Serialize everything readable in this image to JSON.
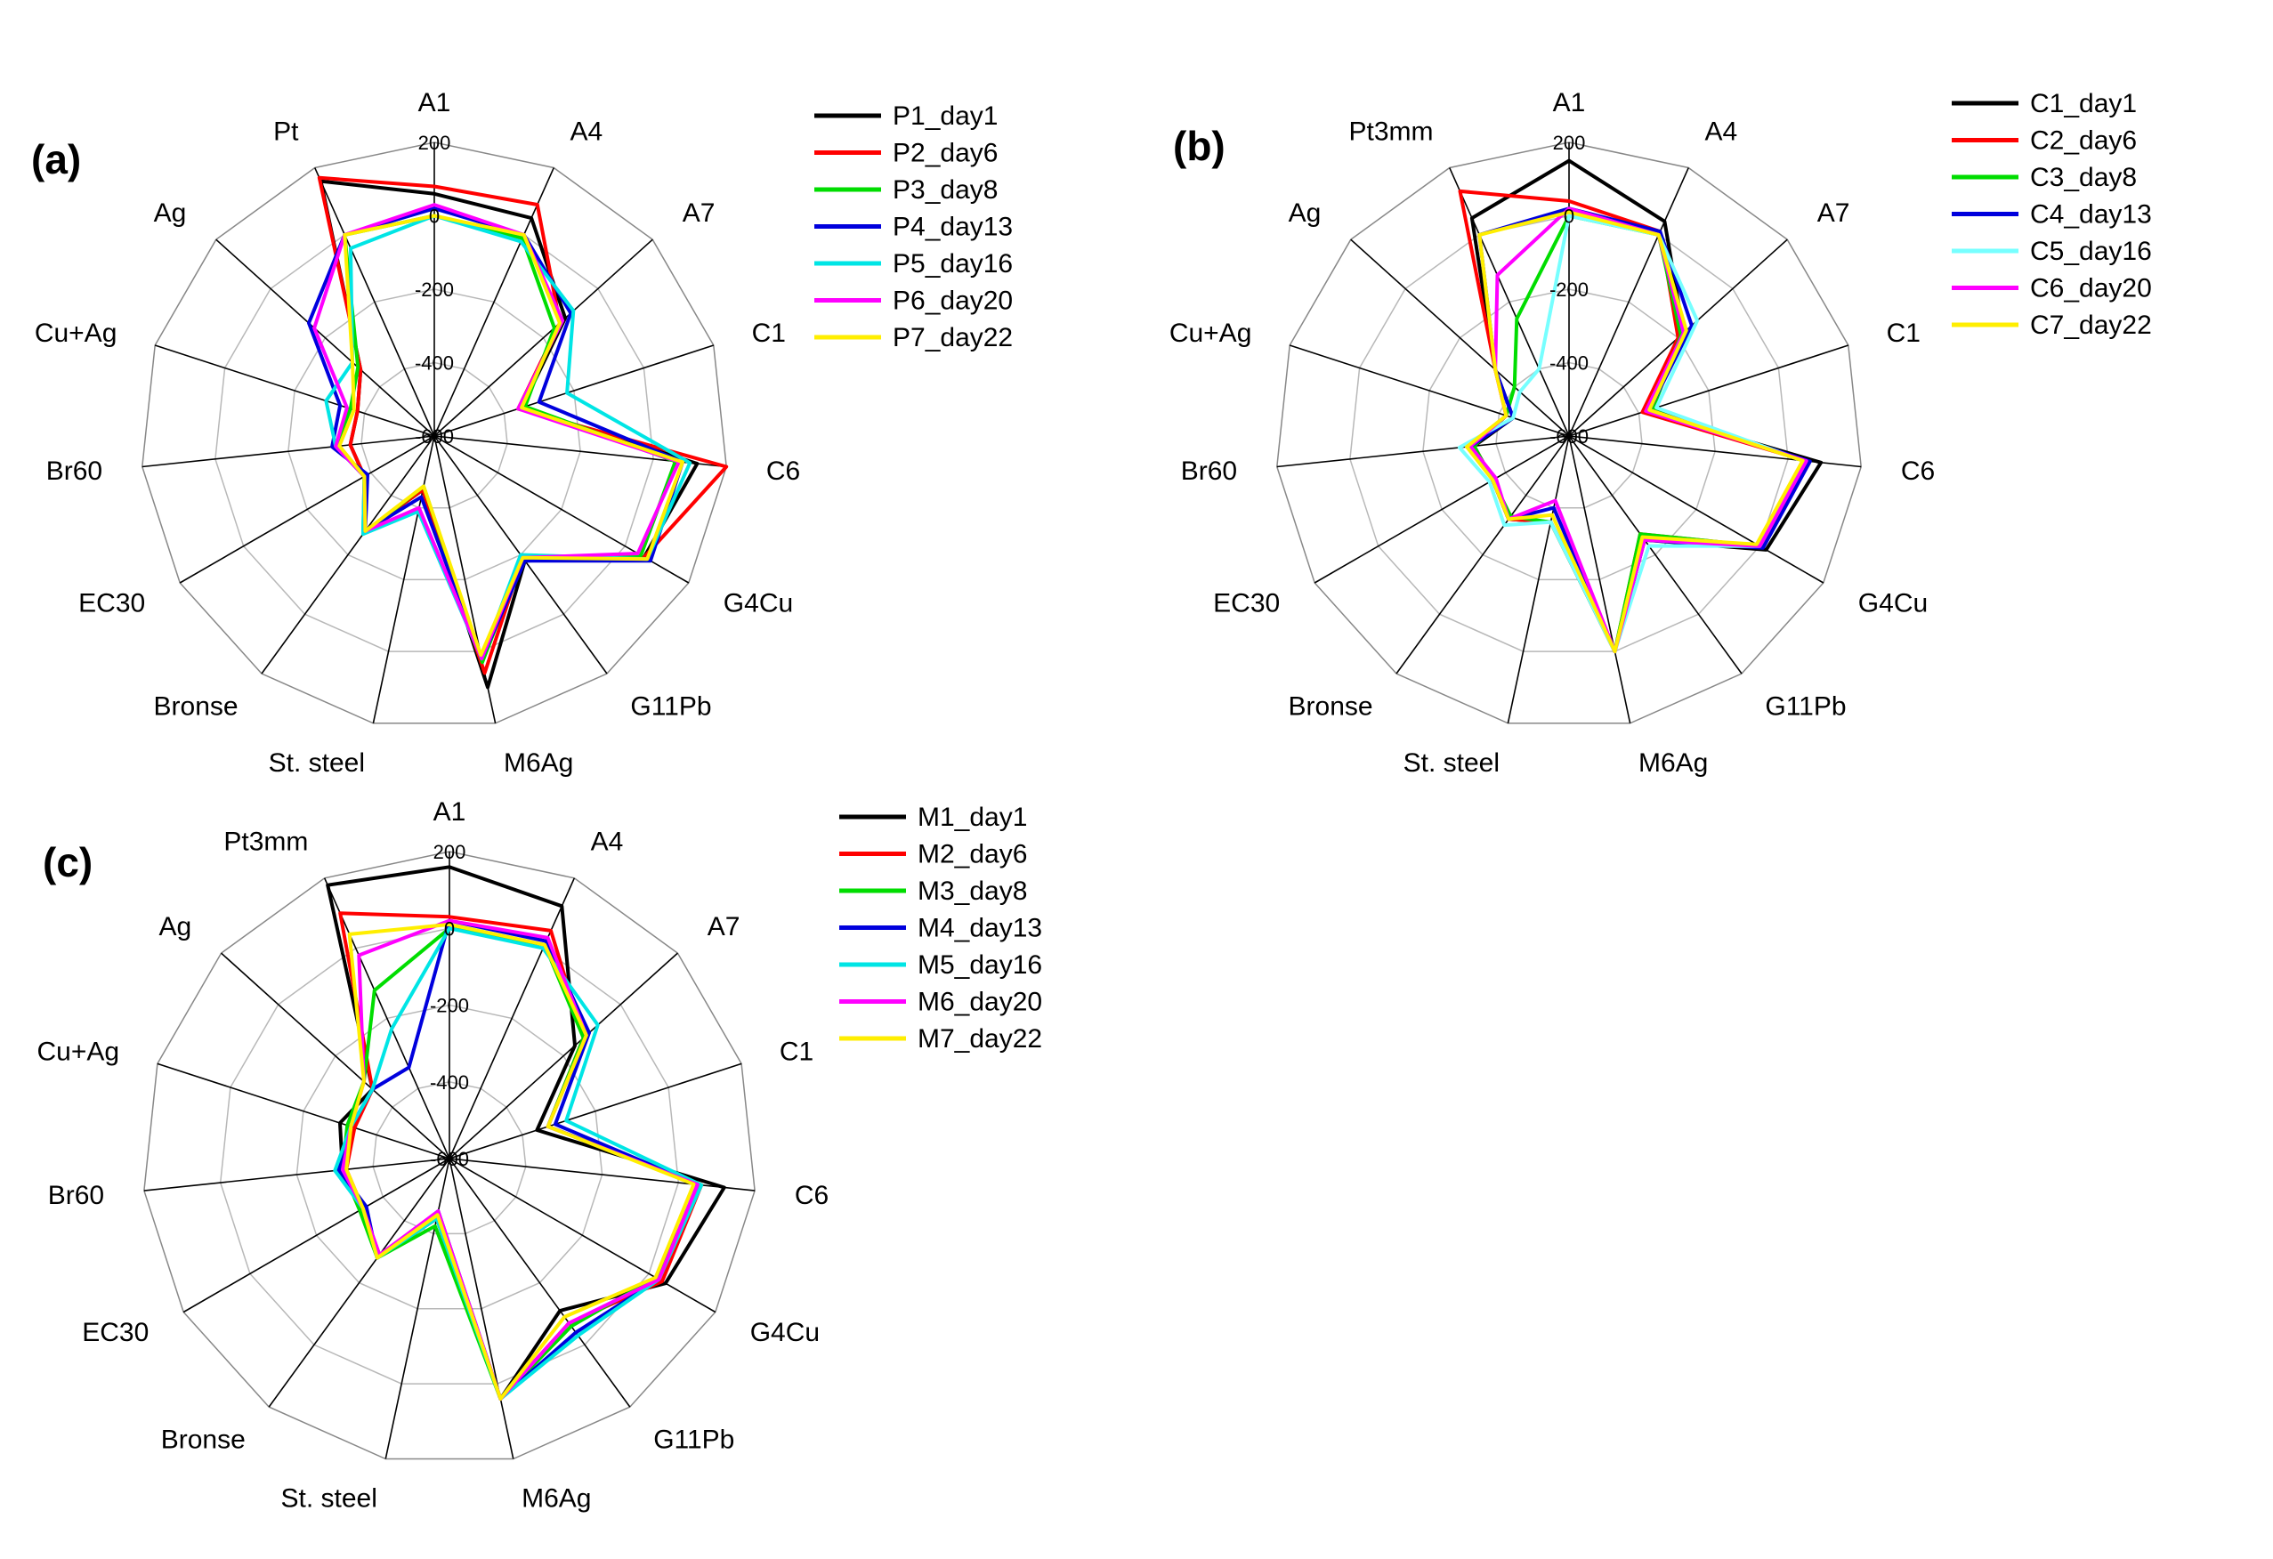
{
  "chart_data": [
    {
      "type": "radar",
      "panel_label": "(a)",
      "categories": [
        "A1",
        "A4",
        "A7",
        "C1",
        "C6",
        "G4Cu",
        "G11Pb",
        "M6Ag",
        "St. steel",
        "Bronse",
        "EC30",
        "Br60",
        "Cu+Ag",
        "Ag",
        "Pt"
      ],
      "r_ticks": [
        "200",
        "0",
        "-200",
        "-400",
        "-600"
      ],
      "r_range": [
        -600,
        200
      ],
      "legend_position": "top-right",
      "series": [
        {
          "name": "P1_day1",
          "color": "#000000",
          "values": [
            60,
            50,
            -120,
            -350,
            120,
            60,
            -180,
            100,
            -450,
            -280,
            -380,
            -370,
            -380,
            -330,
            160
          ]
        },
        {
          "name": "P2_day6",
          "color": "#ff0000",
          "values": [
            80,
            90,
            -140,
            -360,
            200,
            60,
            -190,
            60,
            -450,
            -280,
            -380,
            -370,
            -380,
            -330,
            170
          ]
        },
        {
          "name": "P3_day8",
          "color": "#00dd00",
          "values": [
            0,
            -10,
            -160,
            -340,
            60,
            50,
            -190,
            30,
            -460,
            -270,
            -380,
            -330,
            -360,
            -320,
            0
          ]
        },
        {
          "name": "P4_day13",
          "color": "#0000dd",
          "values": [
            20,
            0,
            -100,
            -300,
            80,
            80,
            -180,
            20,
            -430,
            -280,
            -390,
            -320,
            -330,
            -140,
            0
          ]
        },
        {
          "name": "P5_day16",
          "color": "#00e5e5",
          "values": [
            0,
            -20,
            -90,
            -220,
            100,
            70,
            -200,
            20,
            -390,
            -270,
            -380,
            -330,
            -290,
            -300,
            -40
          ]
        },
        {
          "name": "P6_day20",
          "color": "#ff00ff",
          "values": [
            30,
            0,
            -130,
            -360,
            70,
            40,
            -190,
            20,
            -400,
            -280,
            -380,
            -330,
            -350,
            -160,
            0
          ]
        },
        {
          "name": "P7_day22",
          "color": "#ffee00",
          "values": [
            0,
            0,
            -140,
            -350,
            80,
            70,
            -190,
            10,
            -460,
            -280,
            -380,
            -340,
            -370,
            -300,
            0
          ]
        }
      ]
    },
    {
      "type": "radar",
      "panel_label": "(b)",
      "categories": [
        "A1",
        "A4",
        "A7",
        "C1",
        "C6",
        "G4Cu",
        "G11Pb",
        "M6Ag",
        "St. steel",
        "Bronse",
        "EC30",
        "Br60",
        "Cu+Ag",
        "Ag",
        "Pt3mm"
      ],
      "r_ticks": [
        "200",
        "0",
        "-200",
        "-400",
        "-600"
      ],
      "r_range": [
        -600,
        200
      ],
      "legend_position": "top-right",
      "series": [
        {
          "name": "C1_day1",
          "color": "#000000",
          "values": [
            150,
            40,
            -180,
            -380,
            90,
            20,
            -250,
            0,
            -360,
            -320,
            -360,
            -340,
            -440,
            -330,
            50
          ]
        },
        {
          "name": "C2_day6",
          "color": "#ff0000",
          "values": [
            40,
            10,
            -200,
            -390,
            50,
            0,
            -270,
            0,
            -360,
            -320,
            -360,
            -340,
            -420,
            -330,
            130
          ]
        },
        {
          "name": "C3_day8",
          "color": "#00dd00",
          "values": [
            0,
            0,
            -190,
            -360,
            40,
            0,
            -270,
            0,
            -360,
            -330,
            -360,
            -340,
            -420,
            -400,
            -250
          ]
        },
        {
          "name": "C4_day13",
          "color": "#0000dd",
          "values": [
            20,
            10,
            -150,
            -370,
            60,
            10,
            -250,
            0,
            -400,
            -320,
            -360,
            -330,
            -440,
            -330,
            0
          ]
        },
        {
          "name": "C5_day16",
          "color": "#77ffff",
          "values": [
            0,
            0,
            -130,
            -350,
            40,
            0,
            -230,
            0,
            -360,
            -300,
            -350,
            -300,
            -440,
            -420,
            -400
          ]
        },
        {
          "name": "C6_day20",
          "color": "#ff00ff",
          "values": [
            20,
            0,
            -180,
            -380,
            50,
            0,
            -250,
            0,
            -420,
            -320,
            -370,
            -330,
            -420,
            -330,
            -120
          ]
        },
        {
          "name": "C7_day22",
          "color": "#ffee00",
          "values": [
            10,
            0,
            -170,
            -370,
            40,
            -10,
            -260,
            0,
            -380,
            -320,
            -360,
            -320,
            -420,
            -330,
            0
          ]
        }
      ]
    },
    {
      "type": "radar",
      "panel_label": "(c)",
      "categories": [
        "A1",
        "A4",
        "A7",
        "C1",
        "C6",
        "G4Cu",
        "G11Pb",
        "M6Ag",
        "St. steel",
        "Bronse",
        "EC30",
        "Br60",
        "Cu+Ag",
        "Ag",
        "Pt3mm"
      ],
      "r_ticks": [
        "200",
        "0",
        "-200",
        "-400",
        "-600"
      ],
      "r_range": [
        -600,
        200
      ],
      "legend_position": "top-right",
      "series": [
        {
          "name": "M1_day1",
          "color": "#000000",
          "values": [
            160,
            120,
            -160,
            -360,
            120,
            50,
            -110,
            40,
            -440,
            -280,
            -340,
            -320,
            -300,
            -330,
            180
          ]
        },
        {
          "name": "M2_day6",
          "color": "#ff0000",
          "values": [
            30,
            50,
            -130,
            -330,
            60,
            40,
            -70,
            40,
            -440,
            -290,
            -340,
            -330,
            -340,
            -330,
            100
          ]
        },
        {
          "name": "M3_day8",
          "color": "#00dd00",
          "values": [
            0,
            10,
            -130,
            -330,
            60,
            20,
            -60,
            40,
            -420,
            -280,
            -330,
            -320,
            -320,
            -300,
            -120
          ]
        },
        {
          "name": "M4_day13",
          "color": "#0000dd",
          "values": [
            20,
            20,
            -110,
            -310,
            50,
            30,
            -40,
            40,
            -460,
            -280,
            -350,
            -310,
            -330,
            -330,
            -340
          ]
        },
        {
          "name": "M5_day16",
          "color": "#00e5e5",
          "values": [
            0,
            0,
            -80,
            -280,
            60,
            30,
            -30,
            40,
            -440,
            -280,
            -340,
            -300,
            -330,
            -330,
            -230
          ]
        },
        {
          "name": "M6_day20",
          "color": "#ff00ff",
          "values": [
            20,
            30,
            -120,
            -330,
            50,
            30,
            -70,
            40,
            -460,
            -290,
            -340,
            -320,
            -330,
            -300,
            -20
          ]
        },
        {
          "name": "M7_day22",
          "color": "#ffee00",
          "values": [
            10,
            10,
            -120,
            -330,
            40,
            20,
            -90,
            40,
            -450,
            -280,
            -340,
            -330,
            -330,
            -300,
            40
          ]
        }
      ]
    }
  ]
}
